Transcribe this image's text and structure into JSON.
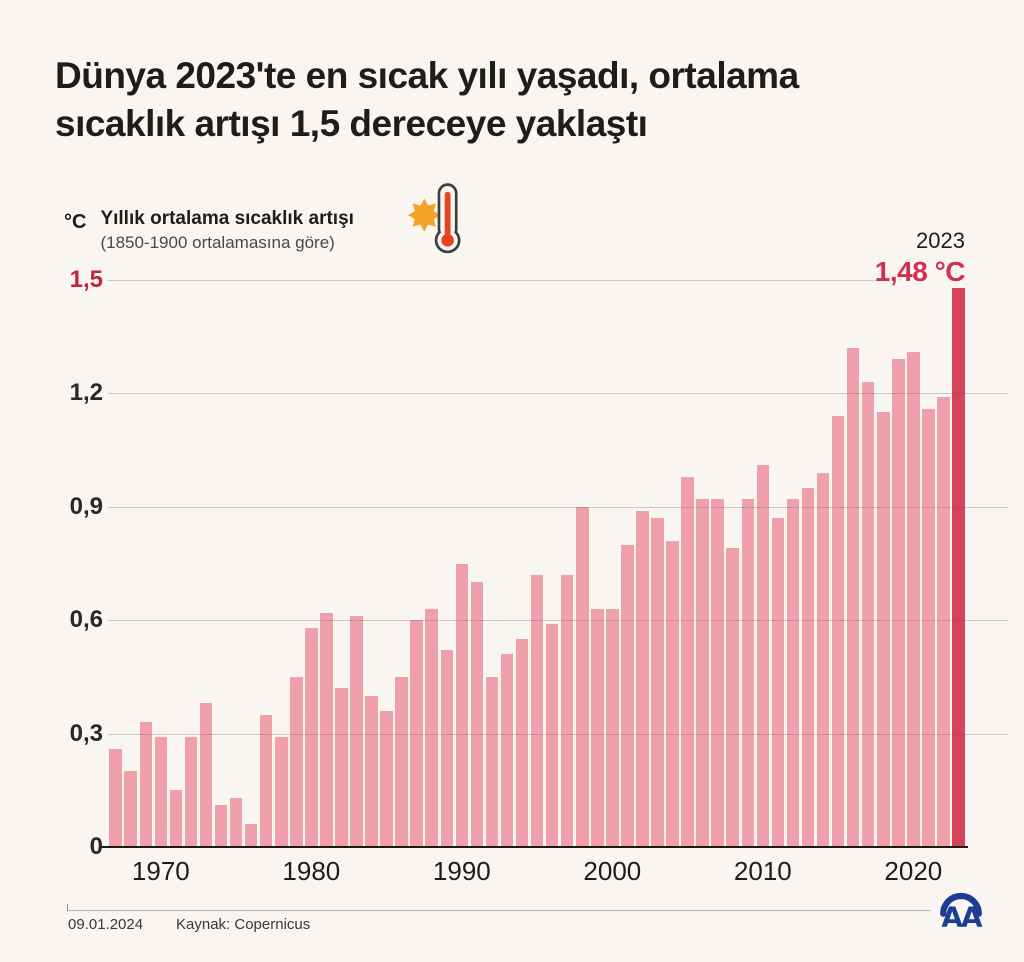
{
  "title": {
    "line1": "Dünya 2023'te en sıcak yılı yaşadı, ortalama",
    "line2": "sıcaklık artışı 1,5 dereceye yaklaştı"
  },
  "legend": {
    "unit": "°C",
    "label": "Yıllık ortalama sıcaklık artışı",
    "sublabel": "(1850-1900 ortalamasına göre)"
  },
  "highlight": {
    "year": "2023",
    "value": "1,48 °C"
  },
  "footer": {
    "date": "09.01.2024",
    "source": "Kaynak: Copernicus",
    "logo_text": "AA"
  },
  "colors": {
    "background": "#f9f6f2",
    "bar": "#efa0ab",
    "bar_highlight": "#d64258",
    "accent_text": "#d02e53",
    "axis_red": "#c2243f",
    "text": "#1f1d1b",
    "logo_blue": "#1c3e92",
    "icon_sun": "#f5a328",
    "icon_mercury": "#e8431f",
    "icon_outline": "#3e3e3e"
  },
  "chart_data": {
    "type": "bar",
    "title": "Yıllık ortalama sıcaklık artışı",
    "subtitle": "(1850-1900 ortalamasına göre)",
    "ylabel": "°C",
    "xlabel": "",
    "ylim": [
      0,
      1.5
    ],
    "grid": true,
    "legend_position": "none",
    "yticks": [
      {
        "value": 0,
        "label": "0"
      },
      {
        "value": 0.3,
        "label": "0,3"
      },
      {
        "value": 0.6,
        "label": "0,6"
      },
      {
        "value": 0.9,
        "label": "0,9"
      },
      {
        "value": 1.2,
        "label": "1,2"
      },
      {
        "value": 1.5,
        "label": "1,5"
      }
    ],
    "xticks": [
      1970,
      1980,
      1990,
      2000,
      2010,
      2020
    ],
    "highlight_year": 2023,
    "annotation": {
      "year_label": "2023",
      "value_label": "1,48 °C"
    },
    "years": [
      1967,
      1968,
      1969,
      1970,
      1971,
      1972,
      1973,
      1974,
      1975,
      1976,
      1977,
      1978,
      1979,
      1980,
      1981,
      1982,
      1983,
      1984,
      1985,
      1986,
      1987,
      1988,
      1989,
      1990,
      1991,
      1992,
      1993,
      1994,
      1995,
      1996,
      1997,
      1998,
      1999,
      2000,
      2001,
      2002,
      2003,
      2004,
      2005,
      2006,
      2007,
      2008,
      2009,
      2010,
      2011,
      2012,
      2013,
      2014,
      2015,
      2016,
      2017,
      2018,
      2019,
      2020,
      2021,
      2022,
      2023
    ],
    "values": [
      0.26,
      0.2,
      0.33,
      0.29,
      0.15,
      0.29,
      0.38,
      0.11,
      0.13,
      0.06,
      0.35,
      0.29,
      0.45,
      0.58,
      0.62,
      0.42,
      0.61,
      0.4,
      0.36,
      0.45,
      0.6,
      0.63,
      0.52,
      0.75,
      0.7,
      0.45,
      0.51,
      0.55,
      0.72,
      0.59,
      0.72,
      0.9,
      0.63,
      0.63,
      0.8,
      0.89,
      0.87,
      0.81,
      0.98,
      0.92,
      0.92,
      0.79,
      0.92,
      1.01,
      0.87,
      0.92,
      0.95,
      0.99,
      1.14,
      1.32,
      1.23,
      1.15,
      1.29,
      1.31,
      1.16,
      1.19,
      1.48
    ]
  }
}
